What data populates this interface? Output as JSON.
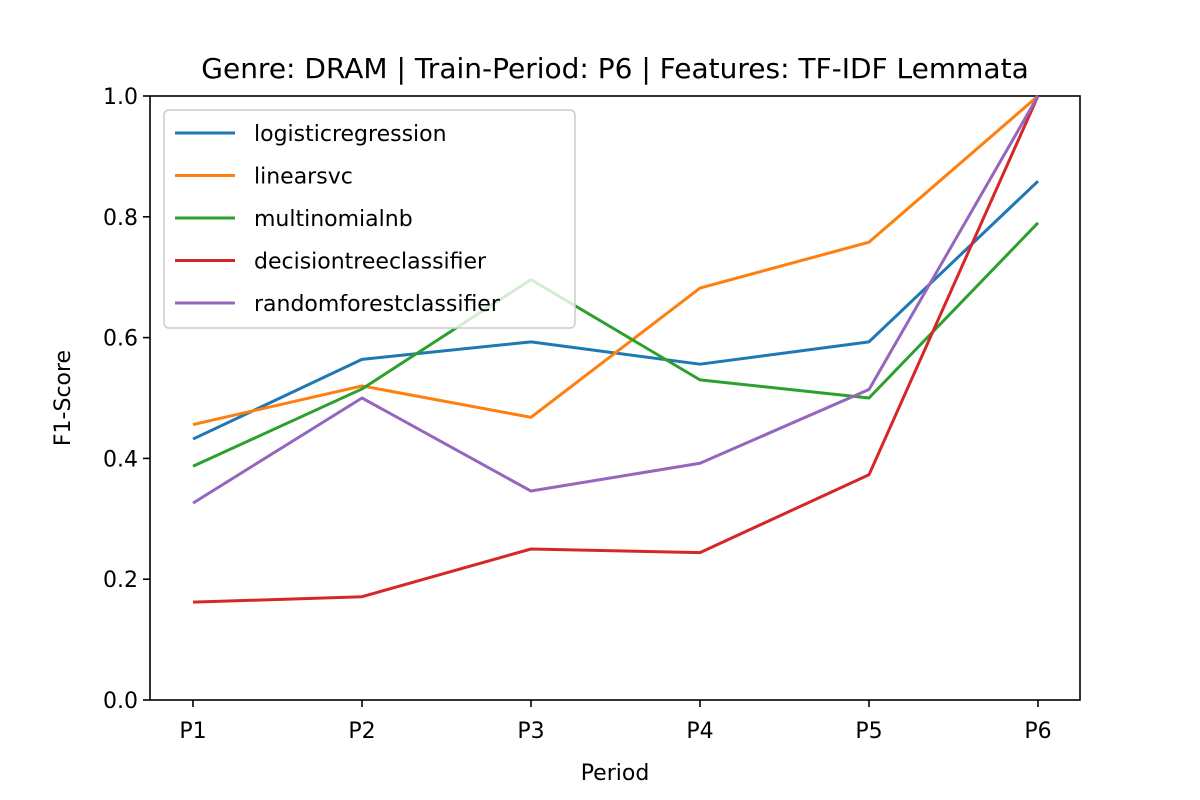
{
  "chart_data": {
    "type": "line",
    "title": "Genre: DRAM | Train-Period: P6 | Features: TF-IDF Lemmata",
    "xlabel": "Period",
    "ylabel": "F1-Score",
    "categories": [
      "P1",
      "P2",
      "P3",
      "P4",
      "P5",
      "P6"
    ],
    "ylim": [
      0.0,
      1.0
    ],
    "yticks": [
      0.0,
      0.2,
      0.4,
      0.6,
      0.8,
      1.0
    ],
    "ytick_labels": [
      "0.0",
      "0.2",
      "0.4",
      "0.6",
      "0.8",
      "1.0"
    ],
    "grid": false,
    "legend_position": "upper-left",
    "series": [
      {
        "name": "logisticregression",
        "color": "#1f77b4",
        "values": [
          0.432,
          0.564,
          0.593,
          0.556,
          0.593,
          0.859
        ]
      },
      {
        "name": "linearsvc",
        "color": "#ff7f0e",
        "values": [
          0.456,
          0.52,
          0.468,
          0.682,
          0.758,
          1.0
        ]
      },
      {
        "name": "multinomialnb",
        "color": "#2ca02c",
        "values": [
          0.387,
          0.515,
          0.696,
          0.53,
          0.5,
          0.79
        ]
      },
      {
        "name": "decisiontreeclassifier",
        "color": "#d62728",
        "values": [
          0.162,
          0.171,
          0.25,
          0.244,
          0.373,
          1.0
        ]
      },
      {
        "name": "randomforestclassifier",
        "color": "#9467bd",
        "values": [
          0.326,
          0.5,
          0.346,
          0.392,
          0.514,
          1.0
        ]
      }
    ]
  }
}
